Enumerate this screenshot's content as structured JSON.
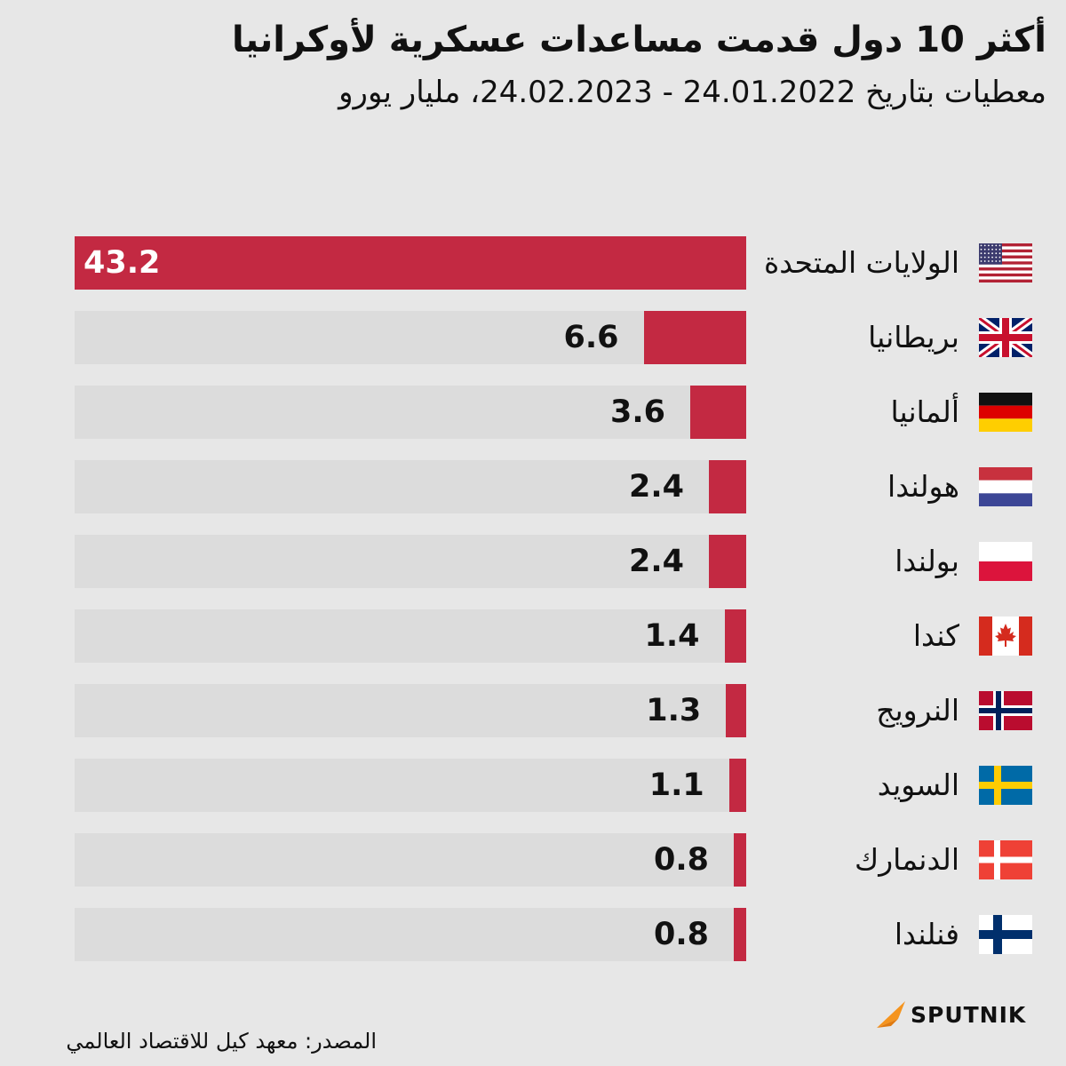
{
  "title": "أكثر 10 دول قدمت مساعدات عسكرية لأوكرانيا",
  "subtitle": "معطيات بتاريخ 24.01.2022 - 24.02.2023، مليار يورو",
  "source": "المصدر: معهد كيل للاقتصاد العالمي",
  "brand": "SPUTNIK",
  "colors": {
    "bar": "#c32942",
    "track": "#dcdcdc",
    "background": "#e7e7e7",
    "logo_accent": "#f5941e"
  },
  "chart_data": {
    "type": "bar",
    "orientation": "horizontal",
    "title": "أكثر 10 دول قدمت مساعدات عسكرية لأوكرانيا",
    "subtitle": "معطيات بتاريخ 24.01.2022 - 24.02.2023، مليار يورو",
    "unit": "مليار يورو",
    "xlim": [
      0,
      43.2
    ],
    "categories": [
      "الولايات المتحدة",
      "بريطانيا",
      "ألمانيا",
      "هولندا",
      "بولندا",
      "كندا",
      "النرويج",
      "السويد",
      "الدنمارك",
      "فنلندا"
    ],
    "values": [
      43.2,
      6.6,
      3.6,
      2.4,
      2.4,
      1.4,
      1.3,
      1.1,
      0.8,
      0.8
    ],
    "labels": [
      "43.2",
      "6.6",
      "3.6",
      "2.4",
      "2.4",
      "1.4",
      "1.3",
      "1.1",
      "0.8",
      "0.8"
    ],
    "flags": [
      "us-flag",
      "uk-flag",
      "germany-flag",
      "netherlands-flag",
      "poland-flag",
      "canada-flag",
      "norway-flag",
      "sweden-flag",
      "denmark-flag",
      "finland-flag"
    ]
  }
}
